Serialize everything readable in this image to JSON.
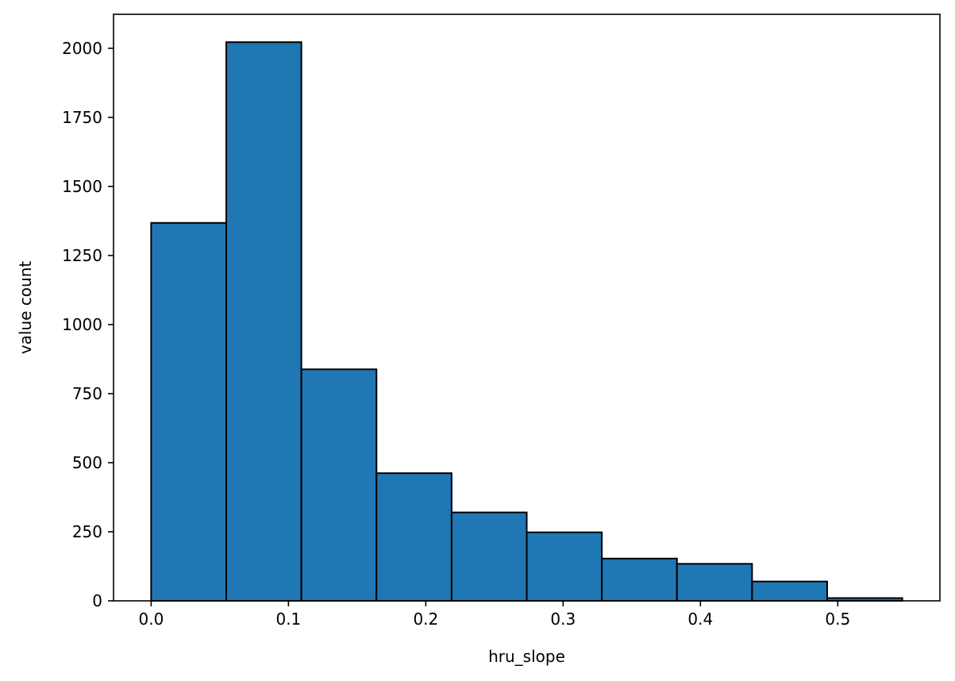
{
  "chart_data": {
    "type": "bar",
    "title": "",
    "xlabel": "hru_slope",
    "ylabel": "value count",
    "bin_edges": [
      0.0,
      0.0547,
      0.1094,
      0.1641,
      0.2188,
      0.2735,
      0.3282,
      0.3829,
      0.4376,
      0.4923,
      0.547
    ],
    "values": [
      1368,
      2022,
      838,
      462,
      320,
      248,
      153,
      134,
      70,
      10
    ],
    "xlim": [
      -0.0274,
      0.5744
    ],
    "ylim": [
      0,
      2123
    ],
    "xticks": [
      0.0,
      0.1,
      0.2,
      0.3,
      0.4,
      0.5
    ],
    "xtick_labels": [
      "0.0",
      "0.1",
      "0.2",
      "0.3",
      "0.4",
      "0.5"
    ],
    "yticks": [
      0,
      250,
      500,
      750,
      1000,
      1250,
      1500,
      1750,
      2000
    ],
    "ytick_labels": [
      "0",
      "250",
      "500",
      "750",
      "1000",
      "1250",
      "1500",
      "1750",
      "2000"
    ],
    "bar_color": "#1f77b4",
    "edge_color": "#000000",
    "grid": false,
    "legend": "none"
  }
}
